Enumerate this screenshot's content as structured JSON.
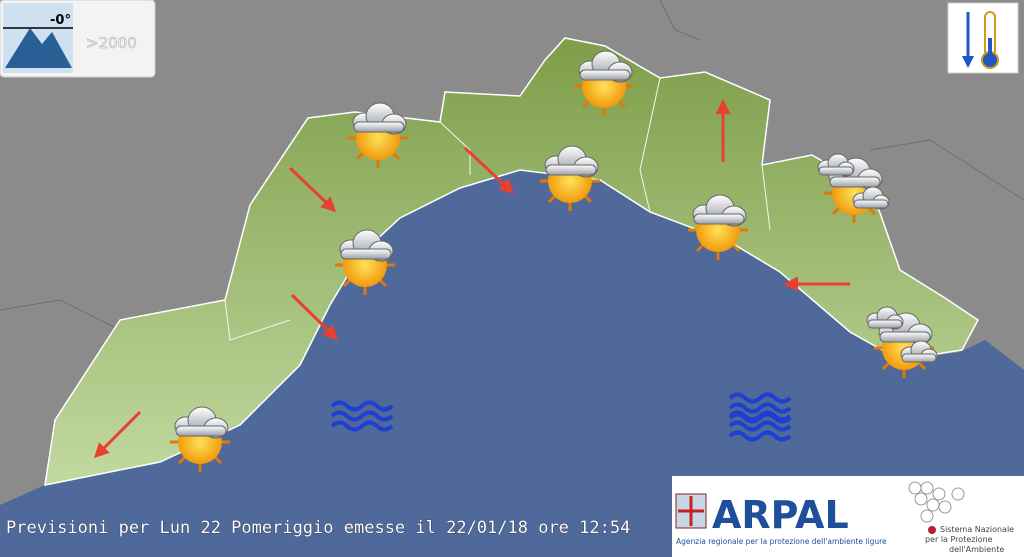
{
  "legend": {
    "freezing_level": "-0°",
    "altitude": ">2000"
  },
  "caption": "Previsioni per Lun 22 Pomeriggio emesse il 22/01/18 ore 12:54",
  "logo": {
    "name": "ARPAL",
    "tagline": "Agenzia regionale per la protezione dell'ambiente ligure",
    "snpa": [
      "Sistema Nazionale",
      "per la Protezione",
      "dell'Ambiente"
    ]
  }
}
